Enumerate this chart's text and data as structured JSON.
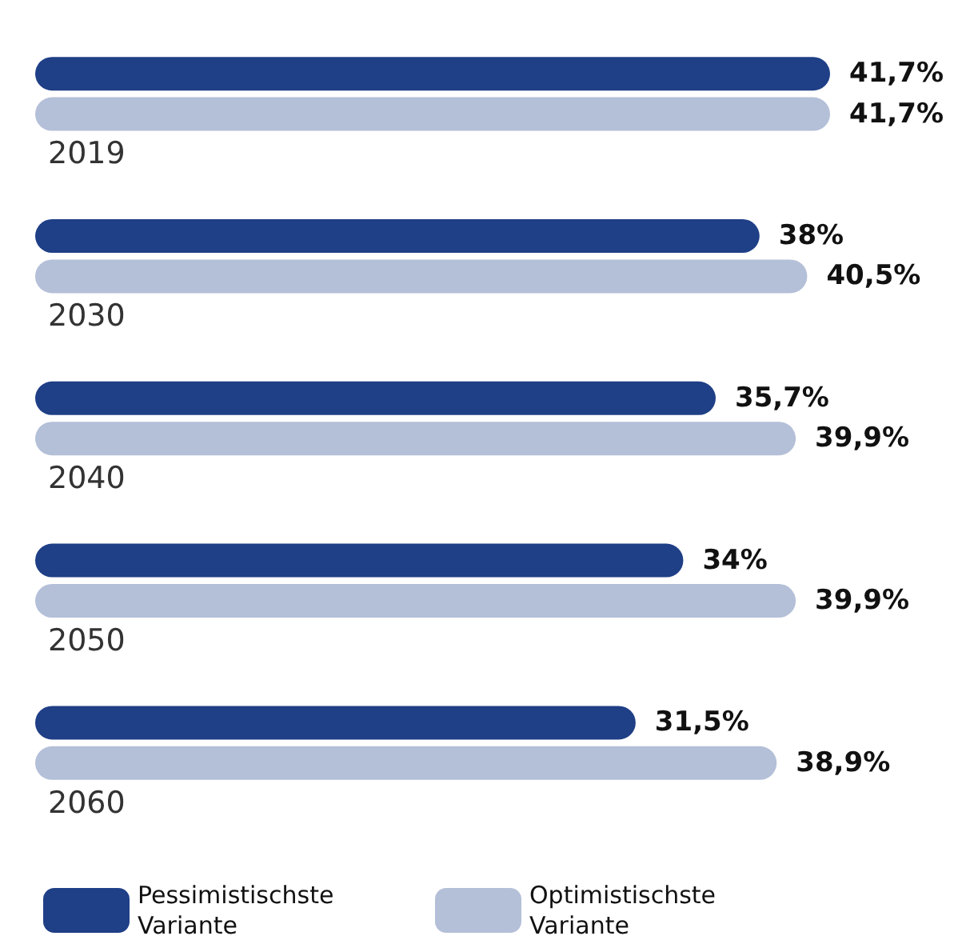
{
  "chart_data": {
    "type": "bar",
    "orientation": "horizontal",
    "categories": [
      "2019",
      "2030",
      "2040",
      "2050",
      "2060"
    ],
    "series": [
      {
        "name": "Pessimistischste Variante",
        "color": "#1f3f86",
        "values": [
          41.7,
          38,
          35.7,
          34,
          31.5
        ],
        "value_labels": [
          "41,7%",
          "38%",
          "35,7%",
          "34%",
          "31,5%"
        ]
      },
      {
        "name": "Optimistischste Variante",
        "color": "#b4bfd8",
        "values": [
          41.7,
          40.5,
          39.9,
          39.9,
          38.9
        ],
        "value_labels": [
          "41,7%",
          "40,5%",
          "39,9%",
          "39,9%",
          "38,9%"
        ]
      }
    ],
    "legend": "bottom",
    "tick_labels": "y"
  }
}
